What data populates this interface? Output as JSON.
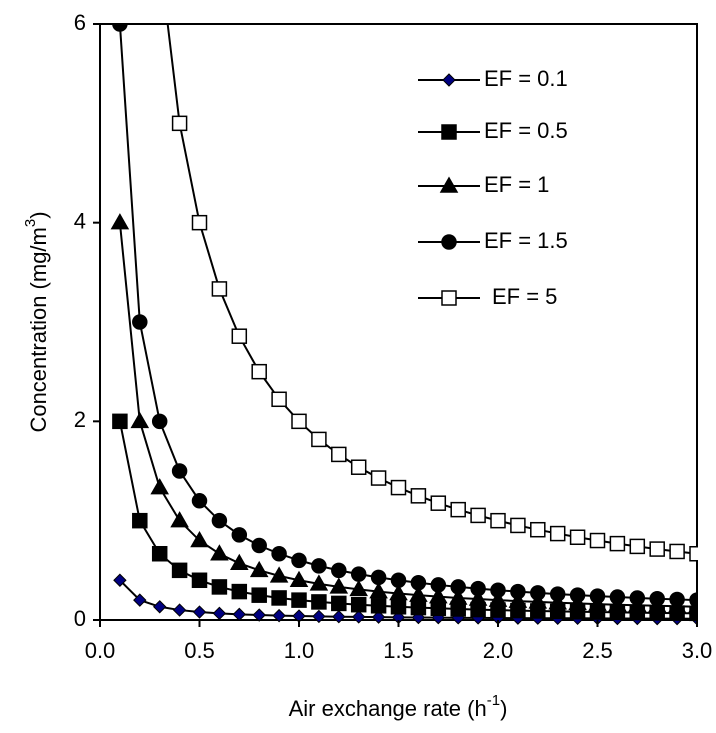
{
  "chart_data": {
    "type": "line",
    "xlabel": {
      "text": "Air exchange rate (h",
      "sup": "-1",
      "end": ")"
    },
    "ylabel": {
      "text": "Concentration (mg/m",
      "sup": "3",
      "end": ")"
    },
    "x": [
      0.1,
      0.2,
      0.3,
      0.4,
      0.5,
      0.6,
      0.7,
      0.8,
      0.9,
      1.0,
      1.1,
      1.2,
      1.3,
      1.4,
      1.5,
      1.6,
      1.7,
      1.8,
      1.9,
      2.0,
      2.1,
      2.2,
      2.3,
      2.4,
      2.5,
      2.6,
      2.7,
      2.8,
      2.9,
      3.0
    ],
    "xlim": [
      0,
      3
    ],
    "xticks": [
      {
        "value": 0,
        "label": "0.0"
      },
      {
        "value": 0.5,
        "label": "0.5"
      },
      {
        "value": 1,
        "label": "1.0"
      },
      {
        "value": 1.5,
        "label": "1.5"
      },
      {
        "value": 2,
        "label": "2.0"
      },
      {
        "value": 2.5,
        "label": "2.5"
      },
      {
        "value": 3,
        "label": "3.0"
      }
    ],
    "ylim": [
      0,
      6
    ],
    "yticks": [
      0,
      2,
      4,
      6
    ],
    "grid": false,
    "legend": "top-right",
    "series": [
      {
        "name": "EF = 0.1",
        "color": "#000080",
        "marker": "diamond",
        "values": [
          0.4,
          0.2,
          0.133,
          0.1,
          0.08,
          0.067,
          0.057,
          0.05,
          0.044,
          0.04,
          0.036,
          0.033,
          0.031,
          0.029,
          0.027,
          0.025,
          0.024,
          0.022,
          0.021,
          0.02,
          0.019,
          0.018,
          0.017,
          0.017,
          0.016,
          0.015,
          0.015,
          0.014,
          0.014,
          0.013
        ]
      },
      {
        "name": "EF = 0.5",
        "color": "#000000",
        "marker": "square",
        "values": [
          2,
          1,
          0.667,
          0.5,
          0.4,
          0.333,
          0.286,
          0.25,
          0.222,
          0.2,
          0.182,
          0.167,
          0.154,
          0.143,
          0.133,
          0.125,
          0.118,
          0.111,
          0.105,
          0.1,
          0.095,
          0.091,
          0.087,
          0.083,
          0.08,
          0.077,
          0.074,
          0.071,
          0.069,
          0.067
        ]
      },
      {
        "name": "EF = 1",
        "color": "#000000",
        "marker": "triangle",
        "values": [
          4,
          2,
          1.333,
          1,
          0.8,
          0.667,
          0.571,
          0.5,
          0.444,
          0.4,
          0.364,
          0.333,
          0.308,
          0.286,
          0.267,
          0.25,
          0.235,
          0.222,
          0.211,
          0.2,
          0.19,
          0.182,
          0.174,
          0.167,
          0.16,
          0.154,
          0.148,
          0.143,
          0.138,
          0.133
        ]
      },
      {
        "name": "EF = 1.5",
        "color": "#000000",
        "marker": "circle",
        "values": [
          6,
          3,
          2,
          1.5,
          1.2,
          1,
          0.857,
          0.75,
          0.667,
          0.6,
          0.545,
          0.5,
          0.462,
          0.429,
          0.4,
          0.375,
          0.353,
          0.333,
          0.316,
          0.3,
          0.286,
          0.273,
          0.261,
          0.25,
          0.24,
          0.231,
          0.222,
          0.214,
          0.207,
          0.2
        ]
      },
      {
        "name": "EF = 5",
        "color": "#ffffff",
        "marker": "square",
        "values": [
          null,
          null,
          6.667,
          5,
          4,
          3.333,
          2.857,
          2.5,
          2.222,
          2,
          1.818,
          1.667,
          1.538,
          1.429,
          1.333,
          1.25,
          1.176,
          1.111,
          1.053,
          1,
          0.952,
          0.909,
          0.87,
          0.833,
          0.8,
          0.769,
          0.741,
          0.714,
          0.69,
          0.667
        ]
      }
    ]
  }
}
